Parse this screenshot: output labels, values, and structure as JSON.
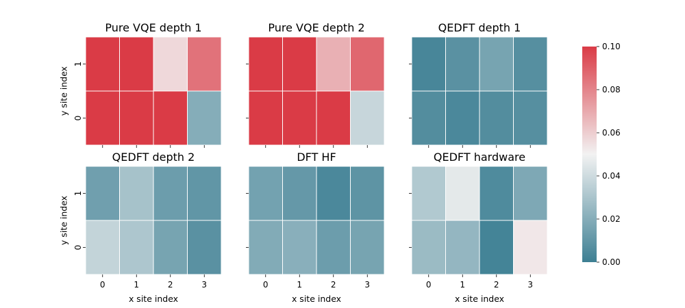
{
  "chart_data": {
    "type": "heatmap",
    "xlabel": "x site index",
    "ylabel": "y site index",
    "x_ticks": [
      "0",
      "1",
      "2",
      "3"
    ],
    "y_ticks": [
      "1",
      "0"
    ],
    "colorbar": {
      "range": [
        0.0,
        0.1
      ],
      "ticks": [
        "0.00",
        "0.02",
        "0.04",
        "0.06",
        "0.08",
        "0.10"
      ],
      "low_color": "#3d7f93",
      "mid_color": "#f2f2f2",
      "high_color": "#da3b46"
    },
    "panels": [
      {
        "title": "Pure VQE depth 1",
        "values": [
          [
            0.1,
            0.1,
            0.057,
            0.085
          ],
          [
            0.1,
            0.1,
            0.1,
            0.02
          ]
        ]
      },
      {
        "title": "Pure VQE depth 2",
        "values": [
          [
            0.1,
            0.1,
            0.068,
            0.088
          ],
          [
            0.1,
            0.1,
            0.1,
            0.038
          ]
        ]
      },
      {
        "title": "QEDFT depth 1",
        "values": [
          [
            0.003,
            0.008,
            0.016,
            0.007
          ],
          [
            0.006,
            0.004,
            0.006,
            0.007
          ]
        ]
      },
      {
        "title": "QEDFT depth 2",
        "values": [
          [
            0.014,
            0.029,
            0.013,
            0.01
          ],
          [
            0.037,
            0.031,
            0.016,
            0.008
          ]
        ]
      },
      {
        "title": "DFT HF",
        "values": [
          [
            0.015,
            0.011,
            0.004,
            0.009
          ],
          [
            0.019,
            0.021,
            0.013,
            0.016
          ]
        ]
      },
      {
        "title": "QEDFT hardware",
        "values": [
          [
            0.032,
            0.046,
            0.005,
            0.018
          ],
          [
            0.026,
            0.024,
            0.002,
            0.053
          ]
        ]
      }
    ]
  }
}
